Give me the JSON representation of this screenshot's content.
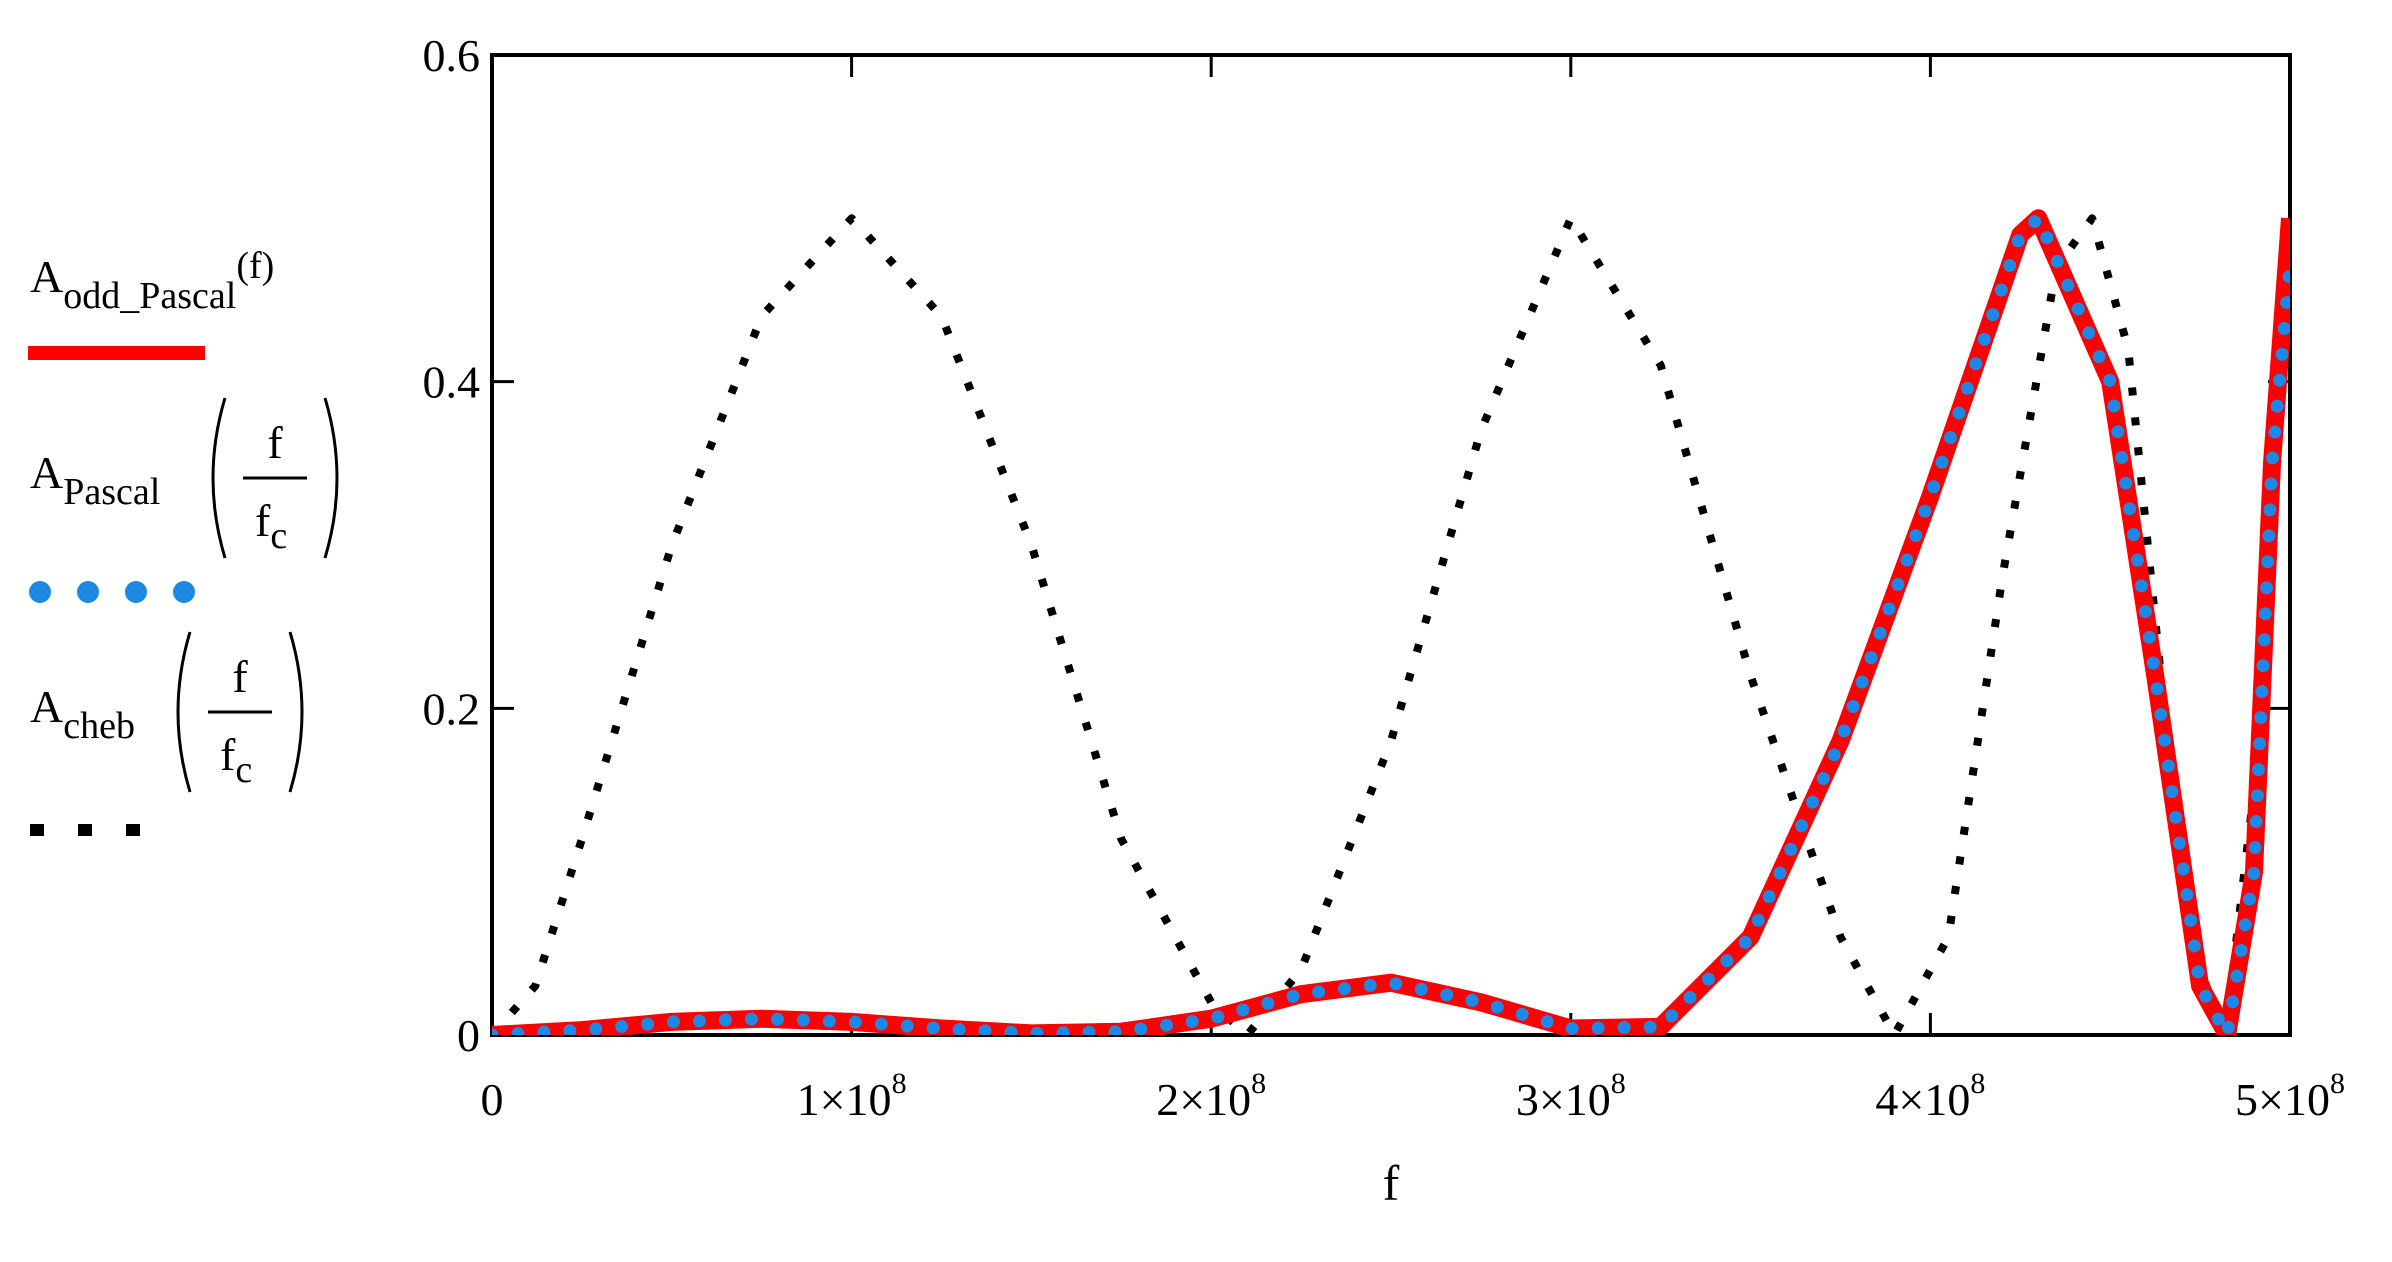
{
  "chart_data": {
    "type": "line",
    "xlabel": "f",
    "ylabel": "",
    "xlim": [
      0,
      500000000
    ],
    "ylim": [
      0,
      0.6
    ],
    "grid": false,
    "legend_position": "left",
    "x_ticks": [
      {
        "value": 0,
        "mantissa": "0",
        "exponent": ""
      },
      {
        "value": 100000000,
        "mantissa": "1×10",
        "exponent": "8"
      },
      {
        "value": 200000000,
        "mantissa": "2×10",
        "exponent": "8"
      },
      {
        "value": 300000000,
        "mantissa": "3×10",
        "exponent": "8"
      },
      {
        "value": 400000000,
        "mantissa": "4×10",
        "exponent": "8"
      },
      {
        "value": 500000000,
        "mantissa": "5×10",
        "exponent": "8"
      }
    ],
    "y_ticks": [
      {
        "value": 0,
        "label": "0"
      },
      {
        "value": 0.2,
        "label": "0.2"
      },
      {
        "value": 0.4,
        "label": "0.4"
      },
      {
        "value": 0.6,
        "label": "0.6"
      }
    ],
    "x": [
      0,
      25000000,
      50000000,
      75000000,
      100000000,
      125000000,
      150000000,
      175000000,
      200000000,
      225000000,
      250000000,
      275000000,
      300000000,
      325000000,
      350000000,
      375000000,
      400000000,
      425000000,
      430000000,
      450000000,
      462500000,
      475000000,
      482500000,
      490000000,
      495000000,
      500000000
    ],
    "series": [
      {
        "legend": {
          "base": "A",
          "sub": "odd_Pascal",
          "arg": "(f)"
        },
        "style": "solid",
        "color": "#ff0000",
        "values": [
          0,
          0.003,
          0.008,
          0.01,
          0.008,
          0.004,
          0.001,
          0.002,
          0.01,
          0.025,
          0.032,
          0.02,
          0.004,
          0.005,
          0.06,
          0.18,
          0.33,
          0.49,
          0.5,
          0.4,
          0.22,
          0.03,
          0.0,
          0.1,
          0.35,
          0.5
        ]
      },
      {
        "legend": {
          "base": "A",
          "sub": "Pascal",
          "frac_num": "f",
          "frac_den_base": "f",
          "frac_den_sub": "c"
        },
        "style": "dotted",
        "color": "#1e88e5",
        "values": [
          0,
          0.003,
          0.008,
          0.01,
          0.008,
          0.004,
          0.001,
          0.002,
          0.01,
          0.025,
          0.032,
          0.02,
          0.004,
          0.005,
          0.06,
          0.18,
          0.33,
          0.49,
          0.5,
          0.4,
          0.22,
          0.03,
          0.0,
          0.1,
          0.35,
          0.47
        ]
      },
      {
        "legend": {
          "base": "A",
          "sub": "cheb",
          "frac_num": "f",
          "frac_den_base": "f",
          "frac_den_sub": "c"
        },
        "style": "dotted",
        "color": "#000000",
        "values_note_free_sample": true,
        "points": [
          [
            0,
            0
          ],
          [
            12000000,
            0.03
          ],
          [
            25000000,
            0.12
          ],
          [
            50000000,
            0.3
          ],
          [
            75000000,
            0.44
          ],
          [
            100000000,
            0.5
          ],
          [
            125000000,
            0.44
          ],
          [
            150000000,
            0.3
          ],
          [
            175000000,
            0.12
          ],
          [
            200000000,
            0.02
          ],
          [
            210000000,
            0
          ],
          [
            225000000,
            0.04
          ],
          [
            250000000,
            0.18
          ],
          [
            275000000,
            0.37
          ],
          [
            300000000,
            0.5
          ],
          [
            325000000,
            0.41
          ],
          [
            350000000,
            0.22
          ],
          [
            375000000,
            0.06
          ],
          [
            390000000,
            0
          ],
          [
            405000000,
            0.06
          ],
          [
            420000000,
            0.28
          ],
          [
            435000000,
            0.47
          ],
          [
            445000000,
            0.5
          ],
          [
            455000000,
            0.42
          ],
          [
            465000000,
            0.2
          ],
          [
            475000000,
            0.04
          ],
          [
            482000000,
            0
          ],
          [
            490000000,
            0.15
          ],
          [
            500000000,
            0.5
          ]
        ]
      }
    ]
  }
}
